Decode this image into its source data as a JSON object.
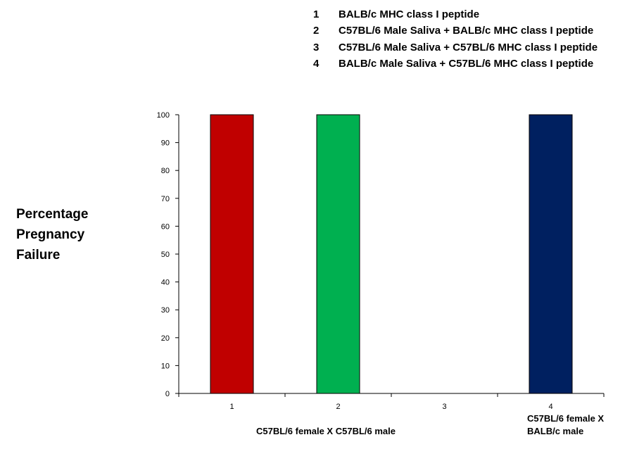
{
  "legend": {
    "items": [
      {
        "num": "1",
        "label": "BALB/c MHC class I peptide"
      },
      {
        "num": "2",
        "label": "C57BL/6 Male Saliva + BALB/c MHC class I peptide"
      },
      {
        "num": "3",
        "label": "C57BL/6 Male Saliva + C57BL/6 MHC class I peptide"
      },
      {
        "num": "4",
        "label": "BALB/c Male Saliva + C57BL/6 MHC class I peptide"
      }
    ]
  },
  "chart_data": {
    "type": "bar",
    "categories": [
      "1",
      "2",
      "3",
      "4"
    ],
    "values": [
      100,
      100,
      0,
      100
    ],
    "colors": [
      "#c00000",
      "#00b050",
      "#ffffff",
      "#002060"
    ],
    "ylabel_lines": [
      "Percentage",
      "Pregnancy",
      "Failure"
    ],
    "ylim": [
      0,
      100
    ],
    "yticks": [
      0,
      10,
      20,
      30,
      40,
      50,
      60,
      70,
      80,
      90,
      100
    ],
    "group_labels": {
      "left": "C57BL/6 female X  C57BL/6 male",
      "right_lines": [
        "C57BL/6 female X",
        "BALB/c male"
      ]
    },
    "grid": false,
    "legend_position": "top-right"
  }
}
